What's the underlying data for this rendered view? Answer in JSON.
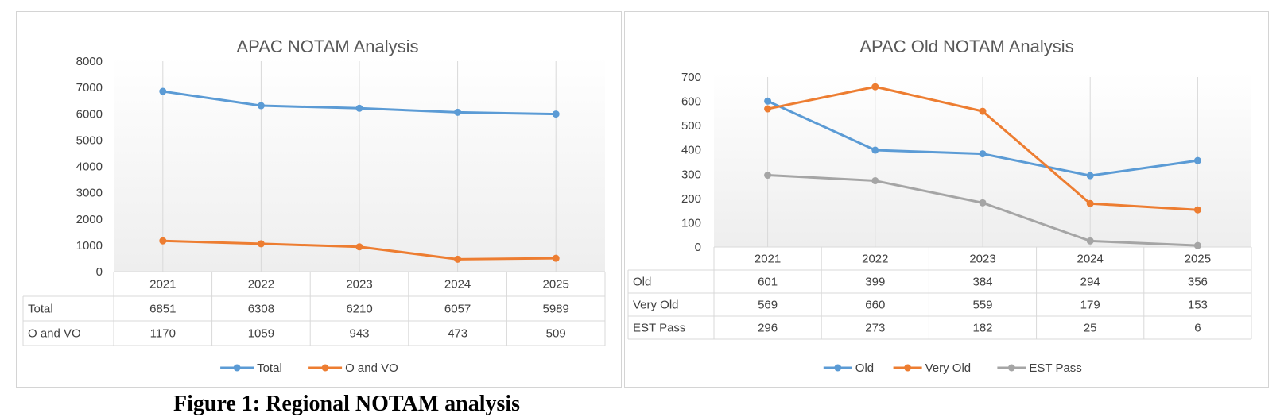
{
  "caption": "Figure 1: Regional NOTAM analysis",
  "colors": {
    "blue": "#5b9bd5",
    "orange": "#ed7d31",
    "gray": "#a5a5a5",
    "grid": "#d9d9d9",
    "text": "#404040",
    "title": "#595959"
  },
  "chart_data": [
    {
      "type": "line",
      "title": "APAC NOTAM Analysis",
      "categories": [
        "2021",
        "2022",
        "2023",
        "2024",
        "2025"
      ],
      "ylim": [
        0,
        8000
      ],
      "yticks": [
        "0",
        "1000",
        "2000",
        "3000",
        "4000",
        "5000",
        "6000",
        "7000",
        "8000"
      ],
      "legend_position": "bottom",
      "data_table": true,
      "series": [
        {
          "name": "Total",
          "color": "#5b9bd5",
          "values": [
            6851,
            6308,
            6210,
            6057,
            5989
          ]
        },
        {
          "name": "O and VO",
          "color": "#ed7d31",
          "values": [
            1170,
            1059,
            943,
            473,
            509
          ]
        }
      ]
    },
    {
      "type": "line",
      "title": "APAC Old NOTAM Analysis",
      "categories": [
        "2021",
        "2022",
        "2023",
        "2024",
        "2025"
      ],
      "ylim": [
        0,
        700
      ],
      "yticks": [
        "0",
        "100",
        "200",
        "300",
        "400",
        "500",
        "600",
        "700"
      ],
      "legend_position": "bottom",
      "data_table": true,
      "series": [
        {
          "name": "Old",
          "color": "#5b9bd5",
          "values": [
            601,
            399,
            384,
            294,
            356
          ]
        },
        {
          "name": "Very Old",
          "color": "#ed7d31",
          "values": [
            569,
            660,
            559,
            179,
            153
          ]
        },
        {
          "name": "EST Pass",
          "color": "#a5a5a5",
          "values": [
            296,
            273,
            182,
            25,
            6
          ]
        }
      ]
    }
  ]
}
